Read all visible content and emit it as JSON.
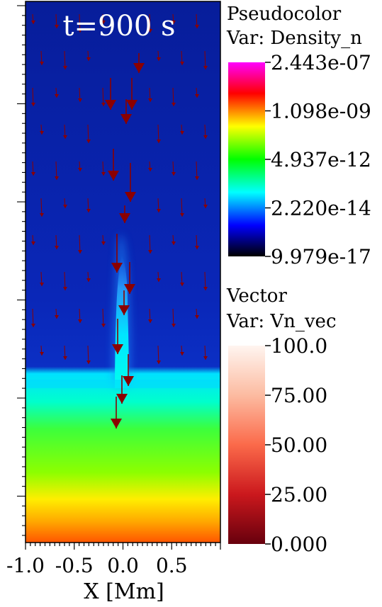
{
  "time_label": "t=900 s",
  "xaxis": {
    "label": "X [Mm]",
    "ticks": [
      {
        "value": -1.0,
        "label": "-1.0"
      },
      {
        "value": -0.5,
        "label": "-0.5"
      },
      {
        "value": 0.0,
        "label": "0.0"
      },
      {
        "value": 0.5,
        "label": "0.5"
      }
    ]
  },
  "legends": {
    "pseudocolor": {
      "title": "Pseudocolor",
      "var": "Var: Density_n",
      "labels": [
        "2.443e-07",
        "1.098e-09",
        "4.937e-12",
        "2.220e-14",
        "9.979e-17"
      ],
      "colors": [
        "#ff00ff",
        "#ff0000",
        "#ffff00",
        "#00ff00",
        "#00ffff",
        "#0000ff",
        "#000000"
      ]
    },
    "vector": {
      "title": "Vector",
      "var": "Var: Vn_vec",
      "labels": [
        "100.0",
        "75.00",
        "50.00",
        "25.00",
        "0.000"
      ],
      "colors": [
        "#fff5f0",
        "#fcbba1",
        "#fb6a4a",
        "#cb181d",
        "#67000d"
      ]
    }
  },
  "chart_data": {
    "type": "heatmap",
    "title": "t=900 s",
    "xlabel": "X [Mm]",
    "ylabel": "",
    "xlim": [
      -1.0,
      1.0
    ],
    "x_ticks": [
      "-1.0",
      "-0.5",
      "0.0",
      "0.5"
    ],
    "colorbar_scale": "log",
    "colorbar_range": [
      9.979e-17,
      2.443e-07
    ],
    "colorbar_ticks": [
      2.443e-07,
      1.098e-09,
      4.937e-12,
      2.22e-14,
      9.979e-17
    ],
    "vector_range": [
      0.0,
      100.0
    ],
    "vector_ticks": [
      100.0,
      75.0,
      50.0,
      25.0,
      0.0
    ],
    "field_description": {
      "upper_layer_color": "#0a1fa8",
      "lower_layer_colors": [
        "#00ffff",
        "#00ff00",
        "#ffff00",
        "#ff3300"
      ],
      "jet_center_x": 0.0
    }
  }
}
